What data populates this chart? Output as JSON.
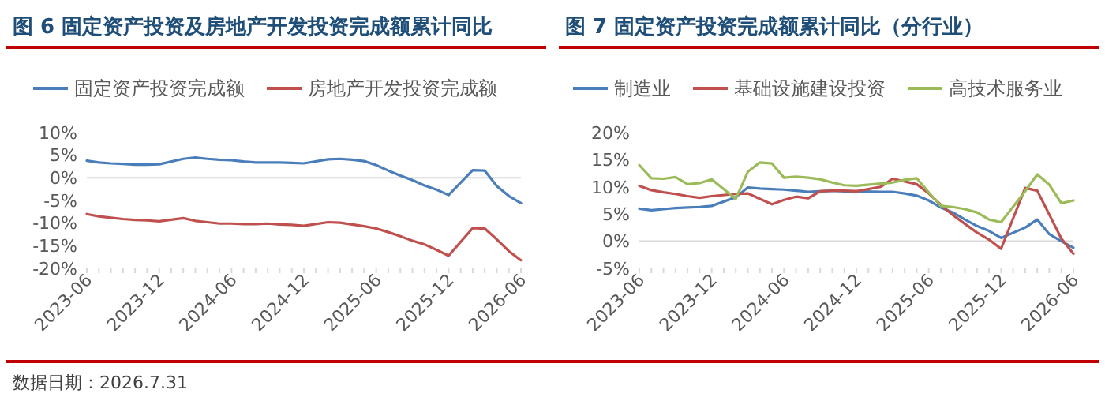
{
  "chart_data": [
    {
      "type": "line",
      "title": "图 6 固定资产投资及房地产开发投资完成额累计同比",
      "categories": [
        "2023-06",
        null,
        null,
        null,
        null,
        null,
        "2023-12",
        null,
        null,
        null,
        null,
        null,
        "2024-06",
        null,
        null,
        null,
        null,
        null,
        "2024-12",
        null,
        null,
        null,
        null,
        null,
        "2025-06",
        null,
        null,
        null,
        null,
        null,
        "2025-12",
        null,
        null,
        null,
        null,
        null,
        "2026-06"
      ],
      "series": [
        {
          "name": "固定资产投资完成额",
          "color": "#4a7ebb",
          "values": [
            3.8,
            3.4,
            3.2,
            3.1,
            2.9,
            2.9,
            3.0,
            null,
            4.2,
            4.5,
            4.2,
            4.0,
            3.9,
            3.6,
            3.4,
            3.4,
            3.4,
            3.3,
            3.2,
            null,
            4.1,
            4.2,
            4.0,
            3.7,
            2.8,
            1.6,
            0.5,
            -0.5,
            -1.7,
            -2.6,
            -3.8,
            null,
            1.7,
            1.6,
            -1.8,
            -4.0,
            -5.6
          ]
        },
        {
          "name": "房地产开发投资完成额",
          "color": "#c0504d",
          "values": [
            -8.0,
            -8.5,
            -8.8,
            -9.1,
            -9.3,
            -9.4,
            -9.6,
            null,
            -8.9,
            -9.5,
            -9.8,
            -10.1,
            -10.1,
            -10.2,
            -10.2,
            -10.1,
            -10.3,
            -10.4,
            -10.6,
            null,
            -9.8,
            -9.9,
            -10.3,
            -10.7,
            -11.2,
            -12.0,
            -12.9,
            -13.9,
            -14.7,
            -15.9,
            -17.2,
            null,
            -11.1,
            -11.2,
            -13.6,
            -16.2,
            -18.2
          ]
        }
      ],
      "ylim": [
        -20,
        10
      ],
      "yticks": [
        {
          "value": -20,
          "label": "-20%"
        },
        {
          "value": -15,
          "label": "-15%"
        },
        {
          "value": -10,
          "label": "-10%"
        },
        {
          "value": -5,
          "label": "-5%"
        },
        {
          "value": 0,
          "label": "0%"
        },
        {
          "value": 5,
          "label": "5%"
        },
        {
          "value": 10,
          "label": "10%"
        }
      ],
      "legend": "top",
      "annotations": [
        "数据日期：2026.7.31"
      ]
    },
    {
      "type": "line",
      "title": "图 7 固定资产投资完成额累计同比（分行业）",
      "categories": [
        "2023-06",
        null,
        null,
        null,
        null,
        null,
        "2023-12",
        null,
        null,
        null,
        null,
        null,
        "2024-06",
        null,
        null,
        null,
        null,
        null,
        "2024-12",
        null,
        null,
        null,
        null,
        null,
        "2025-06",
        null,
        null,
        null,
        null,
        null,
        "2025-12",
        null,
        null,
        null,
        null,
        null,
        "2026-06"
      ],
      "series": [
        {
          "name": "制造业",
          "color": "#4a7ebb",
          "values": [
            6.0,
            5.7,
            5.9,
            6.1,
            6.2,
            6.3,
            6.5,
            null,
            8.1,
            9.9,
            9.7,
            9.6,
            9.5,
            9.3,
            9.1,
            9.2,
            9.3,
            9.2,
            9.2,
            null,
            9.1,
            9.1,
            8.8,
            8.4,
            7.5,
            6.2,
            5.3,
            4.0,
            2.8,
            1.9,
            0.6,
            null,
            2.5,
            4.0,
            1.3,
            0.0,
            -1.2
          ]
        },
        {
          "name": "基础设施建设投资",
          "color": "#c0504d",
          "values": [
            10.2,
            9.4,
            9.0,
            8.7,
            8.3,
            8.0,
            8.3,
            null,
            8.7,
            8.8,
            7.8,
            6.8,
            7.6,
            8.2,
            7.9,
            9.2,
            9.3,
            9.3,
            9.2,
            null,
            10.0,
            11.5,
            11.0,
            10.5,
            8.8,
            6.7,
            4.8,
            3.2,
            1.6,
            0.3,
            -1.4,
            null,
            9.8,
            9.3,
            4.9,
            0.5,
            -2.3
          ]
        },
        {
          "name": "高技术服务业",
          "color": "#9bbb59",
          "values": [
            14.0,
            11.6,
            11.5,
            11.8,
            10.5,
            10.7,
            11.4,
            null,
            7.8,
            12.8,
            14.5,
            14.3,
            11.7,
            11.9,
            11.7,
            11.4,
            10.8,
            10.3,
            10.2,
            null,
            10.6,
            10.8,
            11.3,
            11.6,
            9.0,
            6.5,
            6.3,
            5.9,
            5.3,
            4.0,
            3.5,
            null,
            9.2,
            12.3,
            10.4,
            7.0,
            7.5
          ]
        }
      ],
      "ylim": [
        -5,
        20
      ],
      "yticks": [
        {
          "value": -5,
          "label": "-5%"
        },
        {
          "value": 0,
          "label": "0%"
        },
        {
          "value": 5,
          "label": "5%"
        },
        {
          "value": 10,
          "label": "10%"
        },
        {
          "value": 15,
          "label": "15%"
        },
        {
          "value": 20,
          "label": "20%"
        }
      ],
      "legend": "top"
    }
  ]
}
